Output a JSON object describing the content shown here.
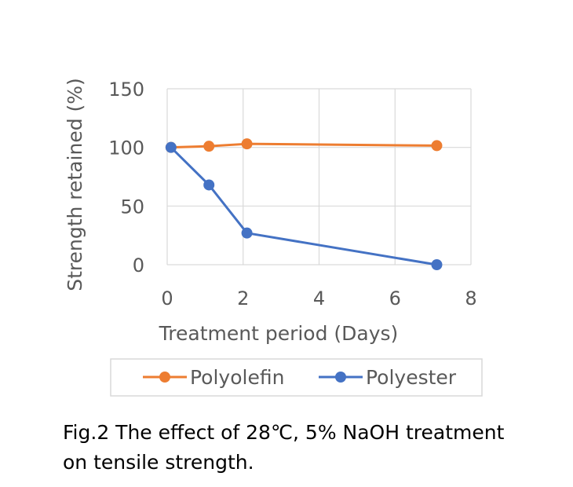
{
  "chart_data": {
    "type": "line",
    "xlabel": "Treatment period (Days)",
    "ylabel": "Strength retained (%)",
    "xlim": [
      0,
      8
    ],
    "ylim": [
      0,
      150
    ],
    "x_ticks": [
      "0",
      "2",
      "4",
      "6",
      "8"
    ],
    "y_ticks": [
      "0",
      "50",
      "100",
      "150"
    ],
    "grid": "vertical and horizontal",
    "legend_position": "bottom",
    "series": [
      {
        "name": "Polyolefin",
        "color": "#ED7D31",
        "x": [
          0.1,
          1.1,
          2.1,
          7.1
        ],
        "y": [
          100,
          101,
          103,
          101.5
        ]
      },
      {
        "name": "Polyester",
        "color": "#4472C4",
        "x": [
          0.1,
          1.1,
          2.1,
          7.1
        ],
        "y": [
          100,
          68,
          27,
          0
        ]
      }
    ]
  },
  "caption": {
    "line1": "Fig.2 The effect of 28℃, 5% NaOH treatment",
    "line2": "on tensile strength."
  }
}
